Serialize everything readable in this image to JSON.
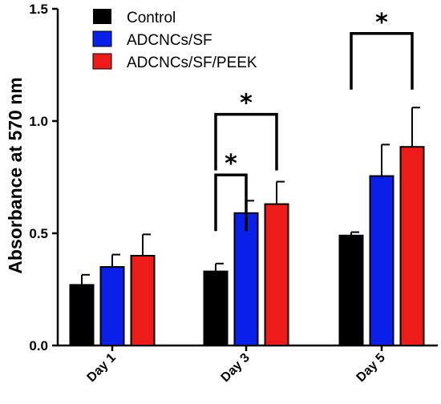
{
  "chart_data": {
    "type": "bar",
    "ylabel": "Absorbance at 570 nm",
    "xlabel": "",
    "ylim": [
      0,
      1.5
    ],
    "yticks": [
      "0.0",
      "0.5",
      "1.0",
      "1.5"
    ],
    "categories": [
      "Day 1",
      "Day 3",
      "Day 5"
    ],
    "legend_position": "top-left",
    "grid": false,
    "series": [
      {
        "name": "Control",
        "color": "#000000",
        "values": [
          0.27,
          0.33,
          0.49
        ],
        "errors": [
          0.045,
          0.035,
          0.015
        ]
      },
      {
        "name": "ADCNCs/SF",
        "color": "#0a1fe8",
        "values": [
          0.35,
          0.59,
          0.755
        ],
        "errors": [
          0.055,
          0.055,
          0.14
        ]
      },
      {
        "name": "ADCNCs/SF/PEEK",
        "color": "#ee1b1b",
        "values": [
          0.4,
          0.63,
          0.885
        ],
        "errors": [
          0.095,
          0.1,
          0.175
        ]
      }
    ],
    "annotations": [
      {
        "label": "*",
        "category": 1,
        "from_series": 0,
        "to_series": 1,
        "level": 0.76
      },
      {
        "label": "*",
        "category": 1,
        "from_series": 0,
        "to_series": 2,
        "level": 1.03
      },
      {
        "label": "*",
        "category": 2,
        "from_series": 0,
        "to_series": 2,
        "level": 1.39
      }
    ]
  }
}
